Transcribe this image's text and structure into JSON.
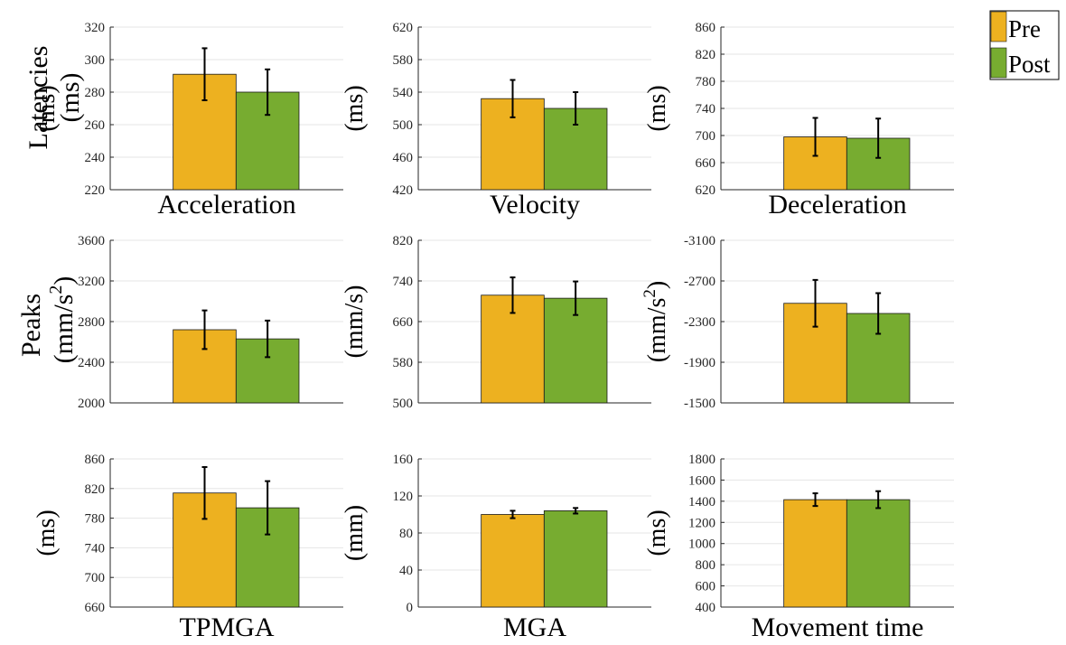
{
  "legend": {
    "position": "top-right",
    "items": [
      {
        "label": "Pre",
        "color": "#EDB120"
      },
      {
        "label": "Post",
        "color": "#77AC30"
      }
    ]
  },
  "row_labels": [
    {
      "line1": "Latencies",
      "line2": "(ms)"
    },
    {
      "line1": "Peaks",
      "line2": "(mm/s",
      "sup": "2",
      "tail": ")"
    }
  ],
  "chart_data": [
    {
      "type": "bar",
      "title": "",
      "xlabel": "Acceleration",
      "ylabel": "(ms)",
      "ylim": [
        220,
        320
      ],
      "yticks": [
        "220",
        "240",
        "260",
        "280",
        "300",
        "320"
      ],
      "categories": [
        "Pre",
        "Post"
      ],
      "values": [
        291,
        280
      ],
      "errors": [
        16,
        14
      ],
      "grid": true
    },
    {
      "type": "bar",
      "title": "",
      "xlabel": "Velocity",
      "ylabel": "(ms)",
      "ylim": [
        420,
        620
      ],
      "yticks": [
        "420",
        "460",
        "500",
        "540",
        "580",
        "620"
      ],
      "categories": [
        "Pre",
        "Post"
      ],
      "values": [
        532,
        520
      ],
      "errors": [
        23,
        20
      ],
      "grid": true
    },
    {
      "type": "bar",
      "title": "",
      "xlabel": "Deceleration",
      "ylabel": "(ms)",
      "ylim": [
        620,
        860
      ],
      "yticks": [
        "620",
        "660",
        "700",
        "740",
        "780",
        "820",
        "860"
      ],
      "categories": [
        "Pre",
        "Post"
      ],
      "values": [
        698,
        696
      ],
      "errors": [
        28,
        29
      ],
      "grid": true
    },
    {
      "type": "bar",
      "title": "",
      "xlabel": "",
      "ylabel": "",
      "ylim": [
        2000,
        3600
      ],
      "yticks": [
        "2000",
        "2400",
        "2800",
        "3200",
        "3600"
      ],
      "categories": [
        "Pre",
        "Post"
      ],
      "values": [
        2720,
        2630
      ],
      "errors": [
        190,
        180
      ],
      "grid": true
    },
    {
      "type": "bar",
      "title": "",
      "xlabel": "",
      "ylabel": "(mm/s)",
      "ylim": [
        500,
        820
      ],
      "yticks": [
        "500",
        "580",
        "660",
        "740",
        "820"
      ],
      "categories": [
        "Pre",
        "Post"
      ],
      "values": [
        712,
        706
      ],
      "errors": [
        35,
        33
      ],
      "grid": true
    },
    {
      "type": "bar",
      "title": "",
      "xlabel": "",
      "ylabel": "(mm/s2)",
      "ylim": [
        -1500,
        -3100
      ],
      "yticks": [
        "-1500",
        "-1900",
        "-2300",
        "-2700",
        "-3100"
      ],
      "categories": [
        "Pre",
        "Post"
      ],
      "values": [
        -2480,
        -2380
      ],
      "errors": [
        230,
        200
      ],
      "grid": true
    },
    {
      "type": "bar",
      "title": "",
      "xlabel": "TPMGA",
      "ylabel": "(ms)",
      "ylim": [
        660,
        860
      ],
      "yticks": [
        "660",
        "700",
        "740",
        "780",
        "820",
        "860"
      ],
      "categories": [
        "Pre",
        "Post"
      ],
      "values": [
        814,
        794
      ],
      "errors": [
        35,
        36
      ],
      "grid": true
    },
    {
      "type": "bar",
      "title": "",
      "xlabel": "MGA",
      "ylabel": "(mm)",
      "ylim": [
        0,
        160
      ],
      "yticks": [
        "0",
        "40",
        "80",
        "120",
        "160"
      ],
      "categories": [
        "Pre",
        "Post"
      ],
      "values": [
        100,
        104
      ],
      "errors": [
        4,
        3
      ],
      "grid": true
    },
    {
      "type": "bar",
      "title": "",
      "xlabel": "Movement time",
      "ylabel": "(ms)",
      "ylim": [
        400,
        1800
      ],
      "yticks": [
        "400",
        "600",
        "800",
        "1000",
        "1200",
        "1400",
        "1600",
        "1800"
      ],
      "categories": [
        "Pre",
        "Post"
      ],
      "values": [
        1415,
        1415
      ],
      "errors": [
        60,
        80
      ],
      "grid": true
    }
  ]
}
